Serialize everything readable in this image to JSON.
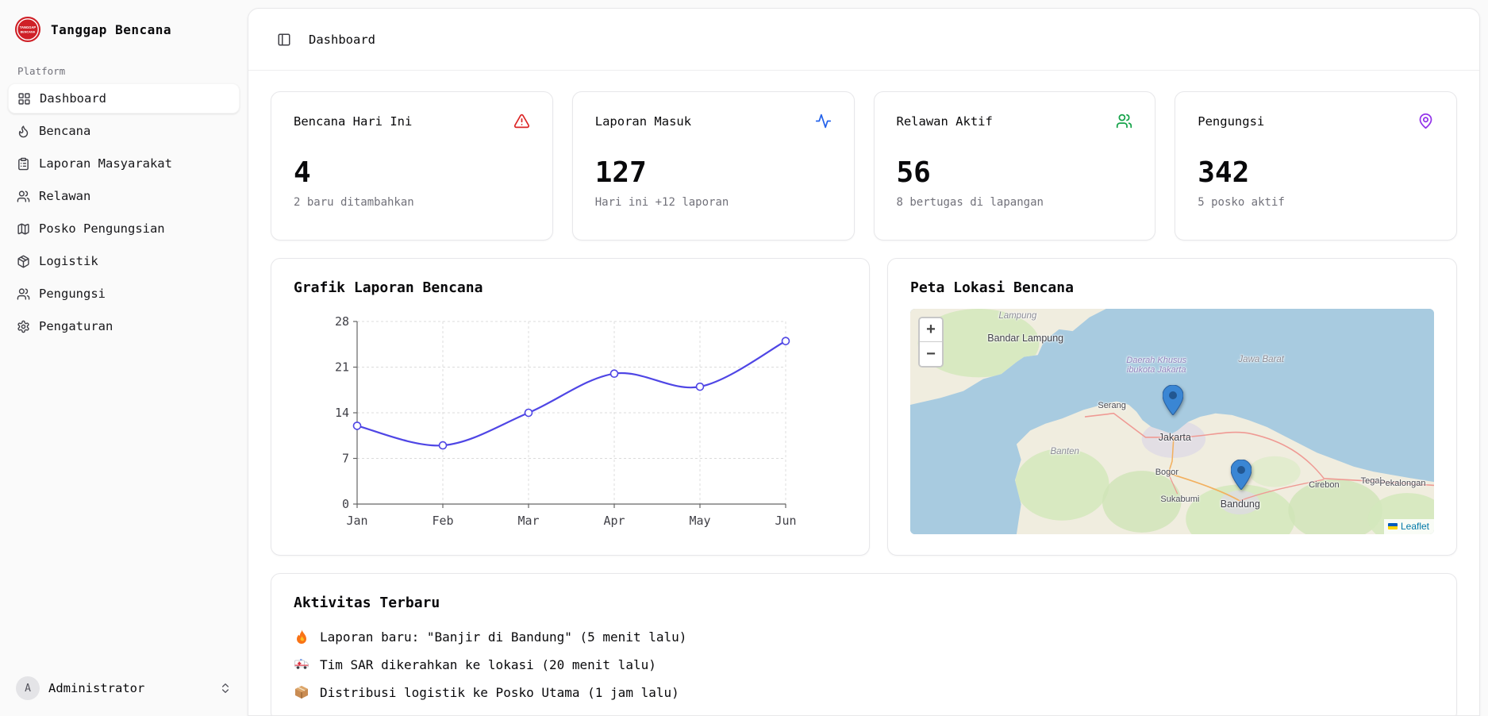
{
  "app": {
    "title": "Tanggap Bencana",
    "logo_line1": "TANGGAP",
    "logo_line2": "BENCANA",
    "section_label": "Platform"
  },
  "sidebar": {
    "items": [
      {
        "label": "Dashboard",
        "icon": "layout-grid",
        "active": true
      },
      {
        "label": "Bencana",
        "icon": "flame",
        "active": false
      },
      {
        "label": "Laporan Masyarakat",
        "icon": "clipboard-list",
        "active": false
      },
      {
        "label": "Relawan",
        "icon": "users",
        "active": false
      },
      {
        "label": "Posko Pengungsian",
        "icon": "map",
        "active": false
      },
      {
        "label": "Logistik",
        "icon": "package",
        "active": false
      },
      {
        "label": "Pengungsi",
        "icon": "users",
        "active": false
      },
      {
        "label": "Pengaturan",
        "icon": "gear",
        "active": false
      }
    ],
    "user": {
      "initial": "A",
      "name": "Administrator"
    }
  },
  "header": {
    "breadcrumb": "Dashboard"
  },
  "stats": [
    {
      "title": "Bencana Hari Ini",
      "value": "4",
      "subtitle": "2 baru ditambahkan",
      "icon": "alert-triangle",
      "icon_color": "#dc2626"
    },
    {
      "title": "Laporan Masuk",
      "value": "127",
      "subtitle": "Hari ini +12 laporan",
      "icon": "activity",
      "icon_color": "#2563eb"
    },
    {
      "title": "Relawan Aktif",
      "value": "56",
      "subtitle": "8 bertugas di lapangan",
      "icon": "users",
      "icon_color": "#16a34a"
    },
    {
      "title": "Pengungsi",
      "value": "342",
      "subtitle": "5 posko aktif",
      "icon": "map-pin",
      "icon_color": "#9333ea"
    }
  ],
  "chart_card": {
    "title": "Grafik Laporan Bencana"
  },
  "chart_data": {
    "type": "line",
    "title": "Grafik Laporan Bencana",
    "x": [
      "Jan",
      "Feb",
      "Mar",
      "Apr",
      "May",
      "Jun"
    ],
    "series": [
      {
        "name": "Laporan",
        "values": [
          12,
          9,
          14,
          20,
          18,
          25
        ]
      }
    ],
    "ylim": [
      0,
      28
    ],
    "yticks": [
      0,
      7,
      14,
      21,
      28
    ],
    "line_color": "#4f46e5",
    "grid": true,
    "legend": false
  },
  "map_card": {
    "title": "Peta Lokasi Bencana",
    "zoom_in_label": "+",
    "zoom_out_label": "−",
    "attribution_link": "Leaflet",
    "labels": [
      {
        "text": "Lampung",
        "type": "region"
      },
      {
        "text": "Bandar Lampung",
        "type": "city"
      },
      {
        "text": "Daerah Khusus ibukota Jakarta",
        "type": "admin"
      },
      {
        "text": "Jawa Barat",
        "type": "region"
      },
      {
        "text": "Serang",
        "type": "town"
      },
      {
        "text": "Jakarta",
        "type": "city"
      },
      {
        "text": "Banten",
        "type": "admin"
      },
      {
        "text": "Bogor",
        "type": "town"
      },
      {
        "text": "Sukabumi",
        "type": "town"
      },
      {
        "text": "Bandung",
        "type": "city"
      },
      {
        "text": "Cirebon",
        "type": "town"
      },
      {
        "text": "Tegal",
        "type": "town"
      },
      {
        "text": "Pekalongan",
        "type": "town"
      }
    ],
    "markers": [
      {
        "location": "Jakarta"
      },
      {
        "location": "Bandung"
      }
    ]
  },
  "activity": {
    "title": "Aktivitas Terbaru",
    "items": [
      {
        "icon": "fire",
        "text": "Laporan baru: \"Banjir di Bandung\" (5 menit lalu)"
      },
      {
        "icon": "ambulance",
        "text": "Tim SAR dikerahkan ke lokasi (20 menit lalu)"
      },
      {
        "icon": "package",
        "text": "Distribusi logistik ke Posko Utama (1 jam lalu)"
      }
    ]
  }
}
